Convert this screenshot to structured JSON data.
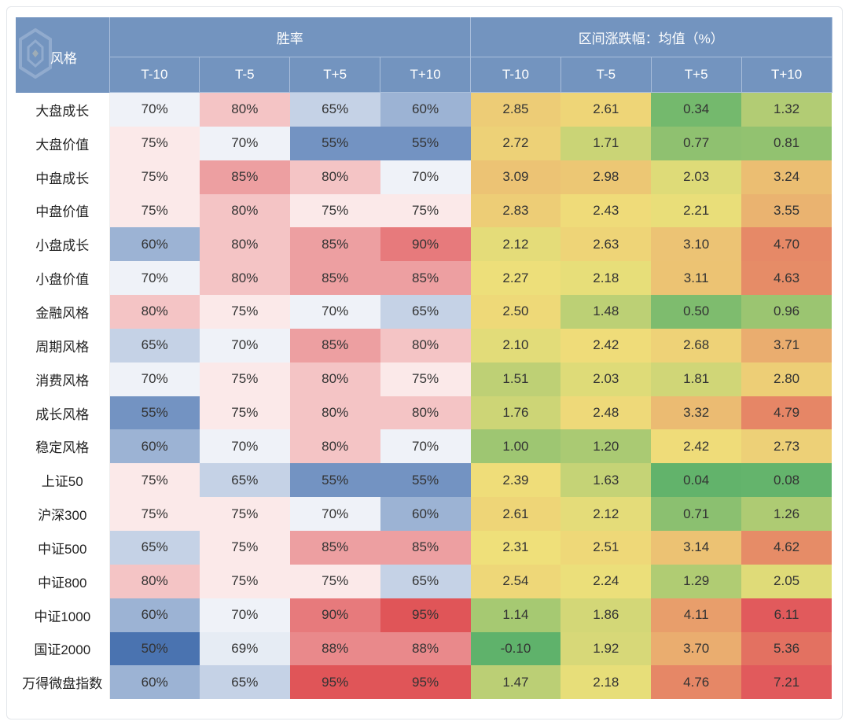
{
  "table": {
    "corner_label": "风格",
    "group_headers": {
      "win_rate": "胜率",
      "return_mean": "区间涨跌幅：均值（%）"
    },
    "sub_headers": [
      "T-10",
      "T-5",
      "T+5",
      "T+10",
      "T-10",
      "T-5",
      "T+5",
      "T+10"
    ],
    "rows": [
      {
        "name": "大盘成长",
        "win": [
          "70%",
          "80%",
          "65%",
          "60%"
        ],
        "ret": [
          "2.85",
          "2.61",
          "0.34",
          "1.32"
        ]
      },
      {
        "name": "大盘价值",
        "win": [
          "75%",
          "70%",
          "55%",
          "55%"
        ],
        "ret": [
          "2.72",
          "1.71",
          "0.77",
          "0.81"
        ]
      },
      {
        "name": "中盘成长",
        "win": [
          "75%",
          "85%",
          "80%",
          "70%"
        ],
        "ret": [
          "3.09",
          "2.98",
          "2.03",
          "3.24"
        ]
      },
      {
        "name": "中盘价值",
        "win": [
          "75%",
          "80%",
          "75%",
          "75%"
        ],
        "ret": [
          "2.83",
          "2.43",
          "2.21",
          "3.55"
        ]
      },
      {
        "name": "小盘成长",
        "win": [
          "60%",
          "80%",
          "85%",
          "90%"
        ],
        "ret": [
          "2.12",
          "2.63",
          "3.10",
          "4.70"
        ]
      },
      {
        "name": "小盘价值",
        "win": [
          "70%",
          "80%",
          "85%",
          "85%"
        ],
        "ret": [
          "2.27",
          "2.18",
          "3.11",
          "4.63"
        ]
      },
      {
        "name": "金融风格",
        "win": [
          "80%",
          "75%",
          "70%",
          "65%"
        ],
        "ret": [
          "2.50",
          "1.48",
          "0.50",
          "0.96"
        ]
      },
      {
        "name": "周期风格",
        "win": [
          "65%",
          "70%",
          "85%",
          "80%"
        ],
        "ret": [
          "2.10",
          "2.42",
          "2.68",
          "3.71"
        ]
      },
      {
        "name": "消费风格",
        "win": [
          "70%",
          "75%",
          "80%",
          "75%"
        ],
        "ret": [
          "1.51",
          "2.03",
          "1.81",
          "2.80"
        ]
      },
      {
        "name": "成长风格",
        "win": [
          "55%",
          "75%",
          "80%",
          "80%"
        ],
        "ret": [
          "1.76",
          "2.48",
          "3.32",
          "4.79"
        ]
      },
      {
        "name": "稳定风格",
        "win": [
          "60%",
          "70%",
          "80%",
          "70%"
        ],
        "ret": [
          "1.00",
          "1.20",
          "2.42",
          "2.73"
        ]
      },
      {
        "name": "上证50",
        "win": [
          "75%",
          "65%",
          "55%",
          "55%"
        ],
        "ret": [
          "2.39",
          "1.63",
          "0.04",
          "0.08"
        ]
      },
      {
        "name": "沪深300",
        "win": [
          "75%",
          "75%",
          "70%",
          "60%"
        ],
        "ret": [
          "2.61",
          "2.12",
          "0.71",
          "1.26"
        ]
      },
      {
        "name": "中证500",
        "win": [
          "65%",
          "75%",
          "85%",
          "85%"
        ],
        "ret": [
          "2.31",
          "2.51",
          "3.14",
          "4.62"
        ]
      },
      {
        "name": "中证800",
        "win": [
          "80%",
          "75%",
          "75%",
          "65%"
        ],
        "ret": [
          "2.54",
          "2.24",
          "1.29",
          "2.05"
        ]
      },
      {
        "name": "中证1000",
        "win": [
          "60%",
          "70%",
          "90%",
          "95%"
        ],
        "ret": [
          "1.14",
          "1.86",
          "4.11",
          "6.11"
        ]
      },
      {
        "name": "国证2000",
        "win": [
          "50%",
          "69%",
          "88%",
          "88%"
        ],
        "ret": [
          "-0.10",
          "1.92",
          "3.70",
          "5.36"
        ]
      },
      {
        "name": "万得微盘指数",
        "win": [
          "60%",
          "65%",
          "95%",
          "95%"
        ],
        "ret": [
          "1.47",
          "2.18",
          "4.76",
          "7.21"
        ]
      }
    ]
  },
  "colors": {
    "header_bg": "#7394bf",
    "win_scale": {
      "low": "#4a73b0",
      "mid": "#ffffff",
      "high": "#e05558"
    },
    "ret_scale": {
      "low": "#5fb26b",
      "mid": "#efe07a",
      "high": "#e15a5c"
    }
  }
}
